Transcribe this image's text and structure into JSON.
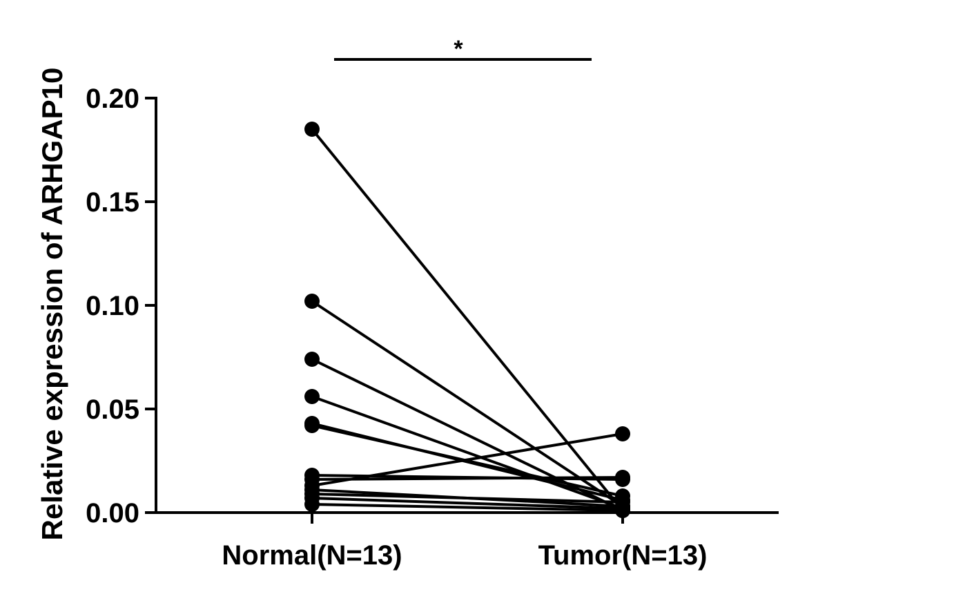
{
  "chart_data": {
    "type": "scatter",
    "subtype": "paired-before-after",
    "categories": [
      "Normal(N=13)",
      "Tumor(N=13)"
    ],
    "ylabel": "Relative expression of ARHGAP10",
    "xlabel": "",
    "ylim": [
      0,
      0.2
    ],
    "yticks": [
      0.0,
      0.05,
      0.1,
      0.15,
      0.2
    ],
    "ytick_labels": [
      "0.00",
      "0.05",
      "0.10",
      "0.15",
      "0.20"
    ],
    "grid": false,
    "legend": "none",
    "significance": {
      "between": [
        "Normal(N=13)",
        "Tumor(N=13)"
      ],
      "label": "*"
    },
    "pairs": [
      {
        "normal": 0.185,
        "tumor": 0.001
      },
      {
        "normal": 0.102,
        "tumor": 0.003
      },
      {
        "normal": 0.074,
        "tumor": 0.001
      },
      {
        "normal": 0.056,
        "tumor": 0.002
      },
      {
        "normal": 0.043,
        "tumor": 0.006
      },
      {
        "normal": 0.042,
        "tumor": 0.008
      },
      {
        "normal": 0.018,
        "tumor": 0.016
      },
      {
        "normal": 0.016,
        "tumor": 0.017
      },
      {
        "normal": 0.013,
        "tumor": 0.038
      },
      {
        "normal": 0.011,
        "tumor": 0.003
      },
      {
        "normal": 0.009,
        "tumor": 0.005
      },
      {
        "normal": 0.007,
        "tumor": 0.002
      },
      {
        "normal": 0.004,
        "tumor": 0.001
      }
    ],
    "colors": {
      "lines": "#000000",
      "points": "#000000",
      "background": "#ffffff"
    }
  }
}
